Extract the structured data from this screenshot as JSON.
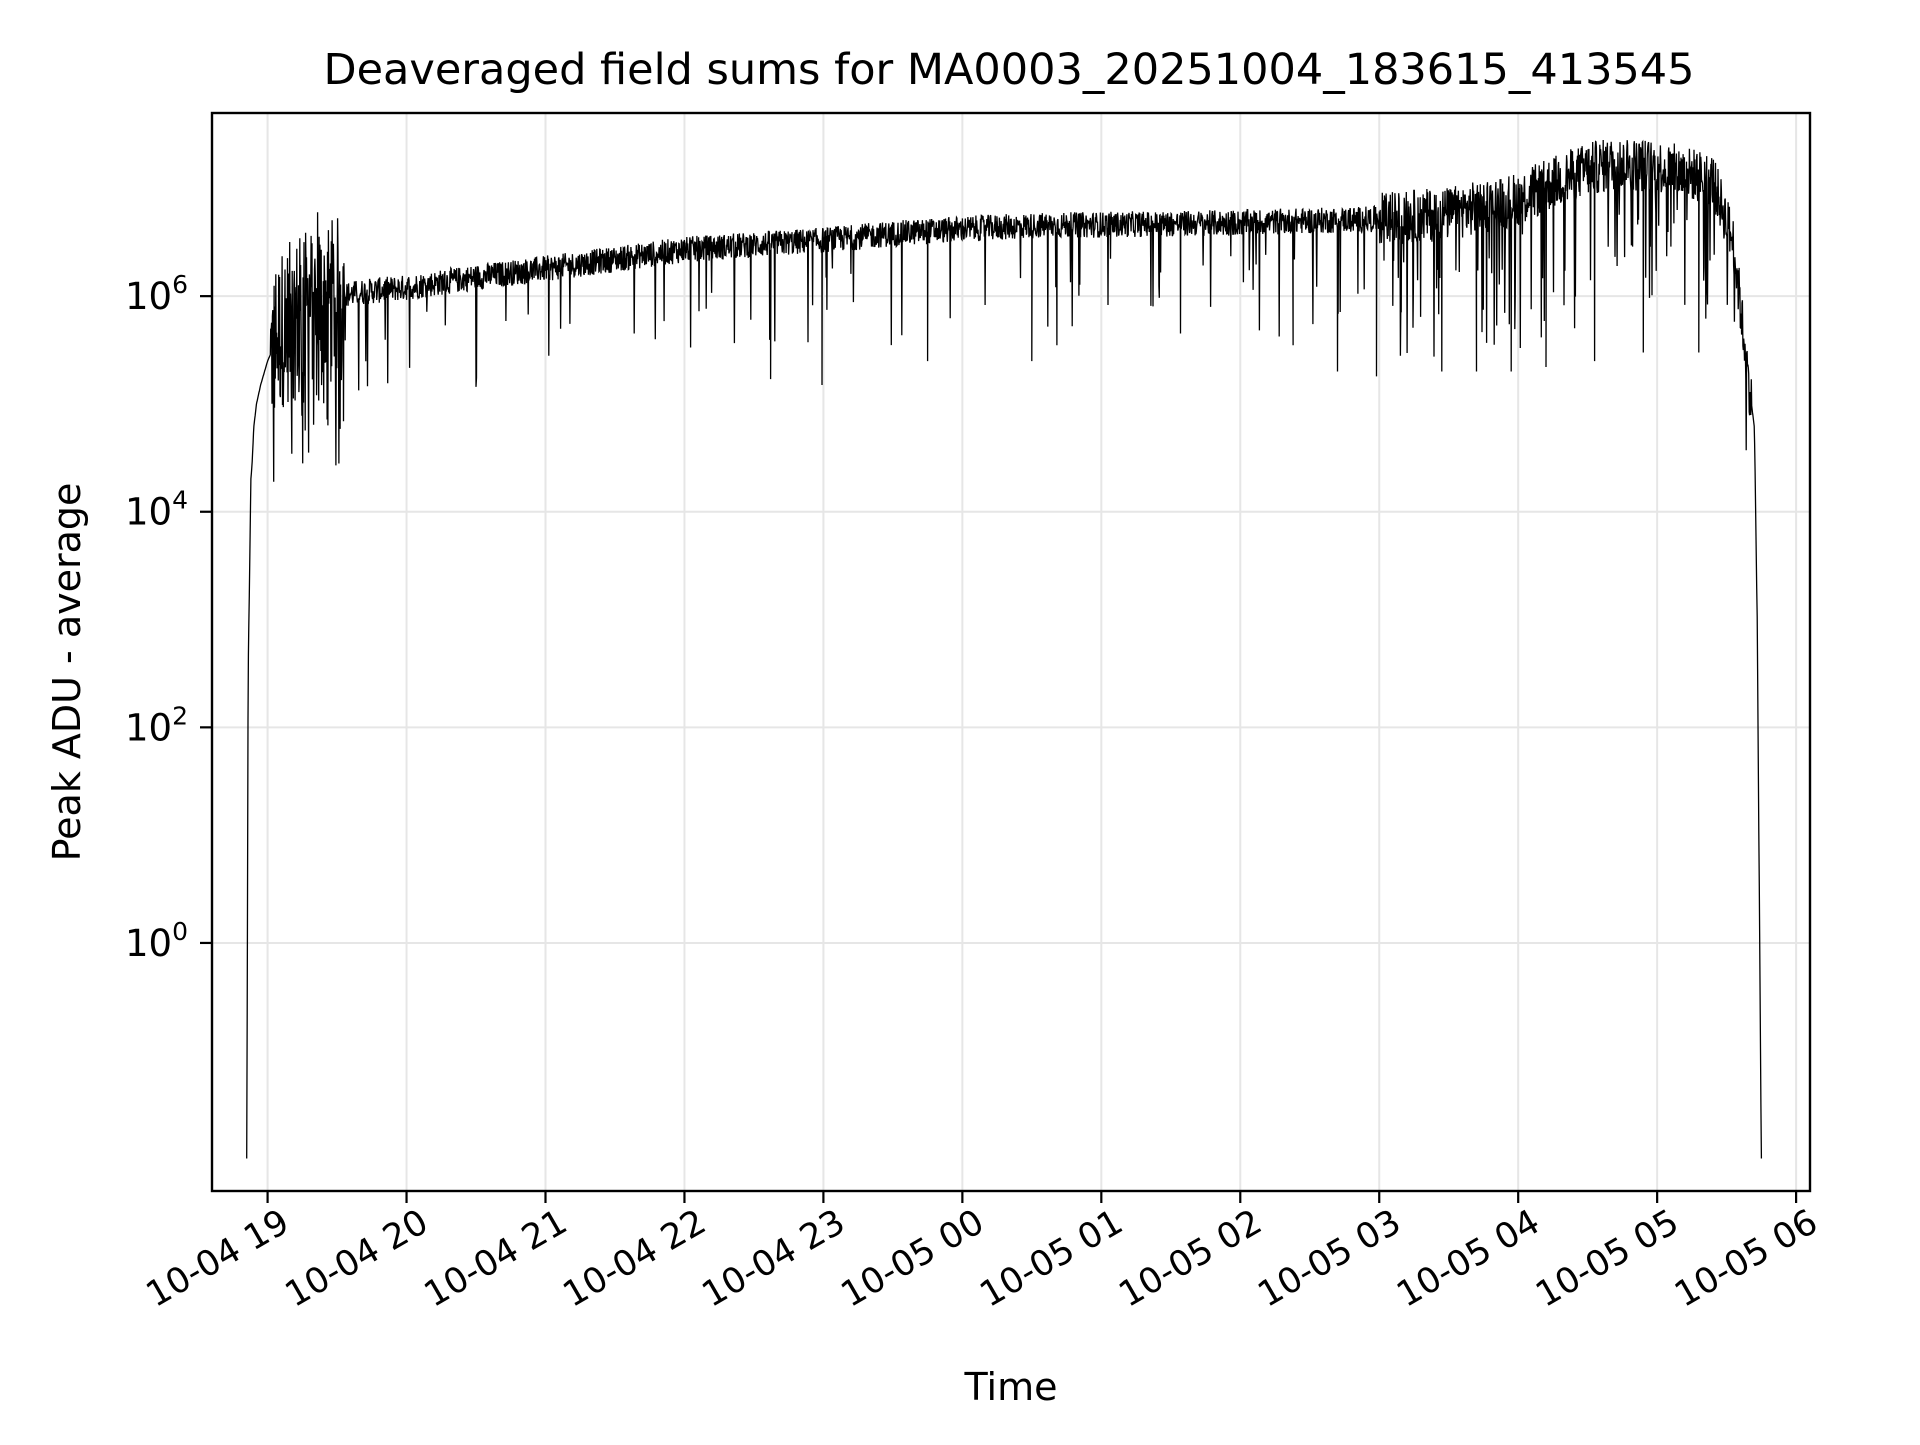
{
  "chart_data": {
    "type": "line",
    "title": "Deaveraged field sums for MA0003_20251004_183615_413545",
    "xlabel": "Time",
    "ylabel": "Peak ADU - average",
    "yscale": "log",
    "ylim": [
      0.005,
      50000000
    ],
    "xlim_hours": [
      -0.4,
      11.1
    ],
    "grid": true,
    "line_color": "#000000",
    "grid_color": "#e6e6e6",
    "x_ticks": [
      {
        "hour": 0,
        "label": "10-04 19"
      },
      {
        "hour": 1,
        "label": "10-04 20"
      },
      {
        "hour": 2,
        "label": "10-04 21"
      },
      {
        "hour": 3,
        "label": "10-04 22"
      },
      {
        "hour": 4,
        "label": "10-04 23"
      },
      {
        "hour": 5,
        "label": "10-05 00"
      },
      {
        "hour": 6,
        "label": "10-05 01"
      },
      {
        "hour": 7,
        "label": "10-05 02"
      },
      {
        "hour": 8,
        "label": "10-05 03"
      },
      {
        "hour": 9,
        "label": "10-05 04"
      },
      {
        "hour": 10,
        "label": "10-05 05"
      },
      {
        "hour": 11,
        "label": "10-05 06"
      }
    ],
    "y_ticks": [
      {
        "value": 1,
        "base": "10",
        "exp": "0"
      },
      {
        "value": 100,
        "base": "10",
        "exp": "2"
      },
      {
        "value": 10000,
        "base": "10",
        "exp": "4"
      },
      {
        "value": 1000000,
        "base": "10",
        "exp": "6"
      }
    ],
    "series_envelope": {
      "name": "Deaveraged field sum",
      "hour_offsets": [
        -0.15,
        -0.14,
        -0.12,
        -0.11,
        -0.1,
        -0.08,
        -0.05,
        0.0,
        0.1,
        0.3,
        0.5,
        0.7,
        1.0,
        1.5,
        2.0,
        2.5,
        3.0,
        3.5,
        4.0,
        4.5,
        5.0,
        5.5,
        6.0,
        6.5,
        7.0,
        7.5,
        8.0,
        8.5,
        9.0,
        9.3,
        9.5,
        9.7,
        10.0,
        10.2,
        10.4,
        10.5,
        10.55,
        10.6,
        10.65,
        10.7,
        10.72,
        10.75
      ],
      "values": [
        0.01,
        300,
        20000,
        30000,
        60000,
        100000,
        150000,
        250000,
        500000,
        800000,
        1000000,
        1100000,
        1200000,
        1500000,
        1800000,
        2200000,
        2700000,
        3000000,
        3300000,
        3800000,
        4200000,
        4500000,
        4600000,
        4700000,
        4800000,
        5000000,
        5200000,
        5800000,
        8000000,
        12000000,
        15000000,
        17000000,
        16000000,
        14000000,
        12000000,
        5000000,
        3000000,
        800000,
        200000,
        60000,
        1000,
        0.01
      ],
      "dips": [
        {
          "hour": 3.62,
          "value": 170000
        },
        {
          "hour": 3.99,
          "value": 150000
        },
        {
          "hour": 4.75,
          "value": 250000
        },
        {
          "hour": 5.5,
          "value": 250000
        },
        {
          "hour": 5.68,
          "value": 350000
        },
        {
          "hour": 6.57,
          "value": 450000
        },
        {
          "hour": 7.38,
          "value": 350000
        },
        {
          "hour": 7.7,
          "value": 200000
        },
        {
          "hour": 7.98,
          "value": 180000
        },
        {
          "hour": 8.45,
          "value": 200000
        },
        {
          "hour": 8.7,
          "value": 200000
        },
        {
          "hour": 8.95,
          "value": 200000
        },
        {
          "hour": 9.2,
          "value": 220000
        },
        {
          "hour": 9.55,
          "value": 250000
        },
        {
          "hour": 9.9,
          "value": 300000
        },
        {
          "hour": 10.3,
          "value": 300000
        }
      ],
      "spike": {
        "hour": 0.36,
        "value": 6000000
      }
    }
  }
}
